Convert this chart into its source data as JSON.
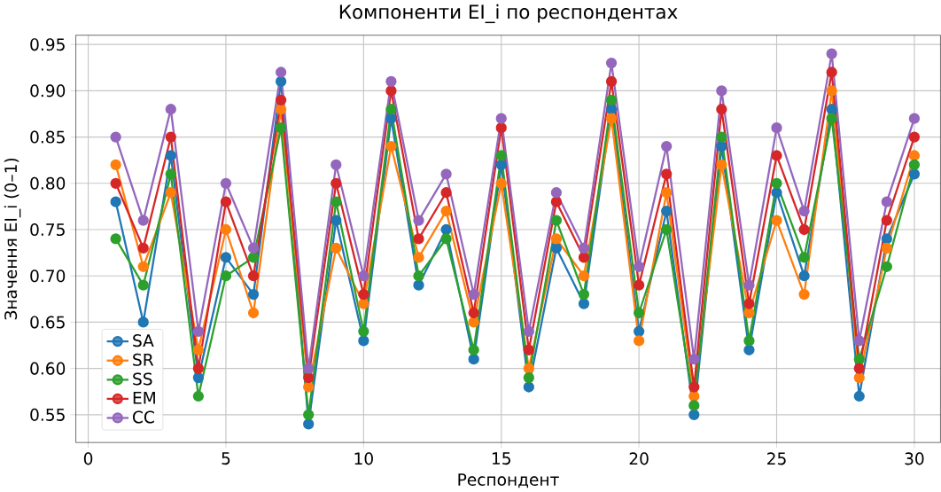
{
  "chart_data": {
    "type": "line",
    "title": "Компоненти EI_i по респондентах",
    "xlabel": "Респондент",
    "ylabel": "Значення EI_i (0–1)",
    "x": [
      1,
      2,
      3,
      4,
      5,
      6,
      7,
      8,
      9,
      10,
      11,
      12,
      13,
      14,
      15,
      16,
      17,
      18,
      19,
      20,
      21,
      22,
      23,
      24,
      25,
      26,
      27,
      28,
      29,
      30
    ],
    "series": [
      {
        "name": "SA",
        "color": "#1f77b4",
        "values": [
          0.78,
          0.65,
          0.83,
          0.59,
          0.72,
          0.68,
          0.91,
          0.54,
          0.76,
          0.63,
          0.87,
          0.69,
          0.75,
          0.61,
          0.82,
          0.58,
          0.73,
          0.67,
          0.88,
          0.64,
          0.77,
          0.55,
          0.84,
          0.62,
          0.79,
          0.7,
          0.88,
          0.57,
          0.74,
          0.81
        ]
      },
      {
        "name": "SR",
        "color": "#ff7f0e",
        "values": [
          0.82,
          0.71,
          0.79,
          0.62,
          0.75,
          0.66,
          0.88,
          0.58,
          0.73,
          0.67,
          0.84,
          0.72,
          0.77,
          0.65,
          0.8,
          0.6,
          0.74,
          0.7,
          0.87,
          0.63,
          0.79,
          0.57,
          0.82,
          0.66,
          0.76,
          0.68,
          0.9,
          0.59,
          0.73,
          0.83
        ]
      },
      {
        "name": "SS",
        "color": "#2ca02c",
        "values": [
          0.74,
          0.69,
          0.81,
          0.57,
          0.7,
          0.72,
          0.86,
          0.55,
          0.78,
          0.64,
          0.88,
          0.7,
          0.74,
          0.62,
          0.83,
          0.59,
          0.76,
          0.68,
          0.89,
          0.66,
          0.75,
          0.56,
          0.85,
          0.63,
          0.8,
          0.72,
          0.87,
          0.61,
          0.71,
          0.82
        ]
      },
      {
        "name": "EM",
        "color": "#d62728",
        "values": [
          0.8,
          0.73,
          0.85,
          0.6,
          0.78,
          0.7,
          0.89,
          0.59,
          0.8,
          0.68,
          0.9,
          0.74,
          0.79,
          0.66,
          0.86,
          0.62,
          0.78,
          0.72,
          0.91,
          0.69,
          0.81,
          0.58,
          0.88,
          0.67,
          0.83,
          0.75,
          0.92,
          0.6,
          0.76,
          0.85
        ]
      },
      {
        "name": "CC",
        "color": "#9467bd",
        "values": [
          0.85,
          0.76,
          0.88,
          0.64,
          0.8,
          0.73,
          0.92,
          0.6,
          0.82,
          0.7,
          0.91,
          0.76,
          0.81,
          0.68,
          0.87,
          0.64,
          0.79,
          0.73,
          0.93,
          0.71,
          0.84,
          0.61,
          0.9,
          0.69,
          0.86,
          0.77,
          0.94,
          0.63,
          0.78,
          0.87
        ]
      }
    ],
    "xlim": [
      -0.45,
      30.95
    ],
    "ylim": [
      0.52,
      0.96
    ],
    "xticks": [
      0,
      5,
      10,
      15,
      20,
      25,
      30
    ],
    "yticks": [
      {
        "value": 0.55,
        "label": "0.55"
      },
      {
        "value": 0.6,
        "label": "0.60"
      },
      {
        "value": 0.65,
        "label": "0.65"
      },
      {
        "value": 0.7,
        "label": "0.70"
      },
      {
        "value": 0.75,
        "label": "0.75"
      },
      {
        "value": 0.8,
        "label": "0.80"
      },
      {
        "value": 0.85,
        "label": "0.85"
      },
      {
        "value": 0.9,
        "label": "0.90"
      },
      {
        "value": 0.95,
        "label": "0.95"
      }
    ],
    "grid": true,
    "legend": "bottom left",
    "marker": "circle",
    "line_style": "solid"
  }
}
